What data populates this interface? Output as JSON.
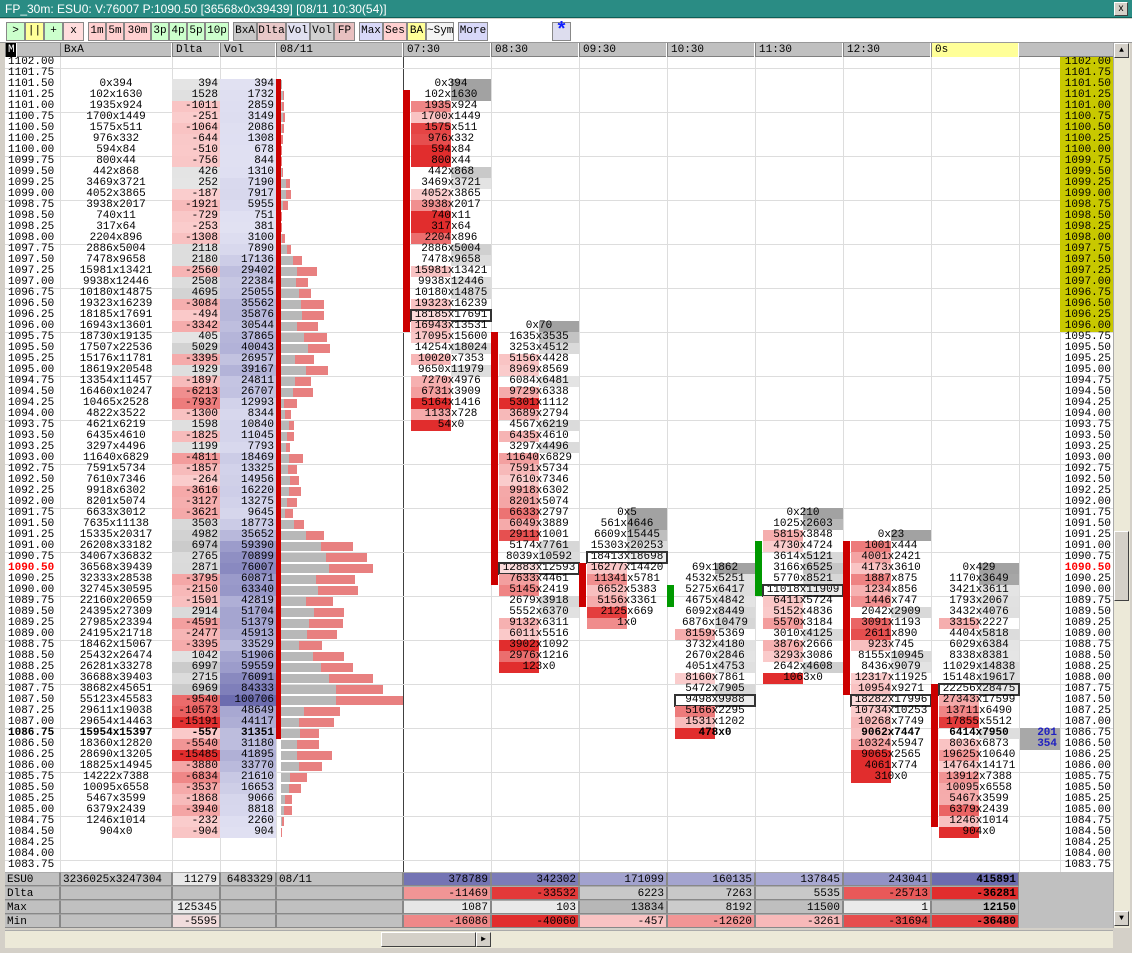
{
  "window": {
    "title": "FP_30m: ESU0: V:76007 P:1090.50 [36568x0x39439] [08/11 10:30(54)]",
    "close": "x"
  },
  "toolbar": {
    "buttons": [
      {
        "label": ">",
        "color": "#ccffcc"
      },
      {
        "label": "||",
        "color": "#ffff99"
      },
      {
        "label": "+",
        "color": "#ccffcc"
      },
      {
        "label": "x",
        "color": "#ffdddd"
      },
      {
        "label": "1m",
        "color": "#ffd0d0"
      },
      {
        "label": "5m",
        "color": "#ffd0d0"
      },
      {
        "label": "30m",
        "color": "#ffd0d0"
      },
      {
        "label": "3p",
        "color": "#ccffcc"
      },
      {
        "label": "4p",
        "color": "#ccffcc"
      },
      {
        "label": "5p",
        "color": "#ccffcc"
      },
      {
        "label": "10p",
        "color": "#ccffcc"
      },
      {
        "label": "BxA",
        "color": "#c8c8c8"
      },
      {
        "label": "Dlta",
        "color": "#e8c8c8"
      },
      {
        "label": "Vol",
        "color": "#e0e0f0"
      },
      {
        "label": "Vol",
        "color": "#d0d0d0"
      },
      {
        "label": "FP",
        "color": "#e8c0c0"
      },
      {
        "label": "Max",
        "color": "#d8d8f8"
      },
      {
        "label": "Ses",
        "color": "#ffd0d0"
      },
      {
        "label": "BA",
        "color": "#ffff99"
      },
      {
        "label": "~Sym",
        "color": "#f4f4f4"
      },
      {
        "label": "More",
        "color": "#d8d8f8"
      }
    ],
    "star_icon": "star-icon"
  },
  "header": {
    "m": "M",
    "bxa": "BxA",
    "dlta": "Dlta",
    "vol": "Vol",
    "date": "08/11",
    "periods": [
      "07:30",
      "08:30",
      "09:30",
      "10:30",
      "11:30",
      "12:30",
      "0s"
    ]
  },
  "prices": [
    "1102.00",
    "1101.75",
    "1101.50",
    "1101.25",
    "1101.00",
    "1100.75",
    "1100.50",
    "1100.25",
    "1100.00",
    "1099.75",
    "1099.50",
    "1099.25",
    "1099.00",
    "1098.75",
    "1098.50",
    "1098.25",
    "1098.00",
    "1097.75",
    "1097.50",
    "1097.25",
    "1097.00",
    "1096.75",
    "1096.50",
    "1096.25",
    "1096.00",
    "1095.75",
    "1095.50",
    "1095.25",
    "1095.00",
    "1094.75",
    "1094.50",
    "1094.25",
    "1094.00",
    "1093.75",
    "1093.50",
    "1093.25",
    "1093.00",
    "1092.75",
    "1092.50",
    "1092.25",
    "1092.00",
    "1091.75",
    "1091.50",
    "1091.25",
    "1091.00",
    "1090.75",
    "1090.50",
    "1090.25",
    "1090.00",
    "1089.75",
    "1089.50",
    "1089.25",
    "1089.00",
    "1088.75",
    "1088.50",
    "1088.25",
    "1088.00",
    "1087.75",
    "1087.50",
    "1087.25",
    "1087.00",
    "1086.75",
    "1086.50",
    "1086.25",
    "1086.00",
    "1085.75",
    "1085.50",
    "1085.25",
    "1085.00",
    "1084.75",
    "1084.50",
    "1084.25",
    "1084.00",
    "1083.75"
  ],
  "current_price": "1090.50",
  "last_price": "1086.75",
  "session_high_band": {
    "from": "1102.00",
    "to": "1096.00",
    "color": "#c8c800"
  },
  "profile": {
    "start": "1101.50",
    "rows": [
      [
        "0x394",
        394,
        394
      ],
      [
        "102x1630",
        1528,
        1732
      ],
      [
        "1935x924",
        -1011,
        2859
      ],
      [
        "1700x1449",
        -251,
        3149
      ],
      [
        "1575x511",
        -1064,
        2086
      ],
      [
        "976x332",
        -644,
        1308
      ],
      [
        "594x84",
        -510,
        678
      ],
      [
        "800x44",
        -756,
        844
      ],
      [
        "442x868",
        426,
        1310
      ],
      [
        "3469x3721",
        252,
        7190
      ],
      [
        "4052x3865",
        -187,
        7917
      ],
      [
        "3938x2017",
        -1921,
        5955
      ],
      [
        "740x11",
        -729,
        751
      ],
      [
        "317x64",
        -253,
        381
      ],
      [
        "2204x896",
        -1308,
        3100
      ],
      [
        "2886x5004",
        2118,
        7890
      ],
      [
        "7478x9658",
        2180,
        17136
      ],
      [
        "15981x13421",
        -2560,
        29402
      ],
      [
        "9938x12446",
        2508,
        22384
      ],
      [
        "10180x14875",
        4695,
        25055
      ],
      [
        "19323x16239",
        -3084,
        35562
      ],
      [
        "18185x17691",
        -494,
        35876
      ],
      [
        "16943x13601",
        -3342,
        30544
      ],
      [
        "18730x19135",
        405,
        37865
      ],
      [
        "17507x22536",
        5029,
        40043
      ],
      [
        "15176x11781",
        -3395,
        26957
      ],
      [
        "18619x20548",
        1929,
        39167
      ],
      [
        "13354x11457",
        -1897,
        24811
      ],
      [
        "16460x10247",
        -6213,
        26707
      ],
      [
        "10465x2528",
        -7937,
        12993
      ],
      [
        "4822x3522",
        -1300,
        8344
      ],
      [
        "4621x6219",
        1598,
        10840
      ],
      [
        "6435x4610",
        -1825,
        11045
      ],
      [
        "3297x4496",
        1199,
        7793
      ],
      [
        "11640x6829",
        -4811,
        18469
      ],
      [
        "7591x5734",
        -1857,
        13325
      ],
      [
        "7610x7346",
        -264,
        14956
      ],
      [
        "9918x6302",
        -3616,
        16220
      ],
      [
        "8201x5074",
        -3127,
        13275
      ],
      [
        "6633x3012",
        -3621,
        9645
      ],
      [
        "7635x11138",
        3503,
        18773
      ],
      [
        "15335x20317",
        4982,
        35652
      ],
      [
        "26208x33182",
        6974,
        59390
      ],
      [
        "34067x36832",
        2765,
        70899
      ],
      [
        "36568x39439",
        2871,
        76007
      ],
      [
        "32333x28538",
        -3795,
        60871
      ],
      [
        "32745x30595",
        -2150,
        63340
      ],
      [
        "22160x20659",
        -1501,
        42819
      ],
      [
        "24395x27309",
        2914,
        51704
      ],
      [
        "27985x23394",
        -4591,
        51379
      ],
      [
        "24195x21718",
        -2477,
        45913
      ],
      [
        "18462x15067",
        -3395,
        33529
      ],
      [
        "25432x26474",
        1042,
        51906
      ],
      [
        "26281x33278",
        6997,
        59559
      ],
      [
        "36688x39403",
        2715,
        76091
      ],
      [
        "38682x45651",
        6969,
        84333
      ],
      [
        "55123x45583",
        -9540,
        100706
      ],
      [
        "29611x19038",
        -10573,
        48649
      ],
      [
        "29654x14463",
        -15191,
        44117
      ],
      [
        "15954x15397",
        -557,
        31351
      ],
      [
        "18360x12820",
        -5540,
        31180
      ],
      [
        "28690x13205",
        -15485,
        41895
      ],
      [
        "18825x14945",
        -3880,
        33770
      ],
      [
        "14222x7388",
        -6834,
        21610
      ],
      [
        "10095x6558",
        -3537,
        16653
      ],
      [
        "5467x3599",
        -1868,
        9066
      ],
      [
        "6379x2439",
        -3940,
        8818
      ],
      [
        "1246x1014",
        -232,
        2260
      ],
      [
        "904x0",
        -904,
        904
      ]
    ],
    "range_bar": {
      "from": "1101.50",
      "to": "1086.75",
      "color": "#cc0000"
    }
  },
  "periods": [
    {
      "label": "07:30",
      "start": "1101.50",
      "poc": 21,
      "bold": -1,
      "marker": {
        "color": "#cc0000",
        "from": 1,
        "to": 22
      },
      "cells": [
        "0x394",
        "102x1630",
        "1935x924",
        "1700x1449",
        "1575x511",
        "976x332",
        "594x84",
        "800x44",
        "442x868",
        "3469x3721",
        "4052x3865",
        "3938x2017",
        "740x11",
        "317x64",
        "2204x896",
        "2886x5004",
        "7478x9658",
        "15981x13421",
        "9938x12446",
        "10180x14875",
        "19323x16239",
        "18185x17691",
        "16943x13531",
        "17095x15600",
        "14254x18024",
        "10020x7353",
        "9650x11979",
        "7270x4976",
        "6731x3909",
        "5164x1416",
        "1133x728",
        "54x0"
      ]
    },
    {
      "label": "08:30",
      "start": "1096.00",
      "poc": 22,
      "bold": -1,
      "marker": {
        "color": "#cc0000",
        "from": 1,
        "to": 23
      },
      "cells": [
        "0x70",
        "1635x3535",
        "3253x4512",
        "5156x4428",
        "8969x8569",
        "6084x6481",
        "9729x6338",
        "5301x1112",
        "3689x2794",
        "4567x6219",
        "6435x4610",
        "3297x4496",
        "11640x6829",
        "7591x5734",
        "7610x7346",
        "9918x6302",
        "8201x5074",
        "6633x2797",
        "6049x3889",
        "2911x1001",
        "5174x7761",
        "8039x10592",
        "12883x12593",
        "7633x4461",
        "5145x2419",
        "2679x3918",
        "5552x6370",
        "9132x6311",
        "6011x5516",
        "3902x1092",
        "2976x1216",
        "123x0"
      ]
    },
    {
      "label": "09:30",
      "start": "1091.75",
      "poc": 4,
      "bold": -1,
      "marker": {
        "color": "#cc0000",
        "from": 5,
        "to": 8
      },
      "cells": [
        "0x5",
        "561x4646",
        "6609x15445",
        "15303x20253",
        "18413x18698",
        "16277x14420",
        "11341x5781",
        "6652x5383",
        "5156x3361",
        "2125x669",
        "1x0"
      ]
    },
    {
      "label": "10:30",
      "start": "1090.50",
      "poc": 12,
      "bold": 15,
      "marker": {
        "color": "#009900",
        "from": 2,
        "to": 3
      },
      "cells": [
        "69x1862",
        "4532x5251",
        "5275x6417",
        "4675x4842",
        "6092x8449",
        "6876x10479",
        "8159x5369",
        "3732x4180",
        "2670x2846",
        "4051x4753",
        "8160x7861",
        "5472x7905",
        "9498x9988",
        "5166x2295",
        "1531x1202",
        "478x0"
      ]
    },
    {
      "label": "11:30",
      "start": "1091.75",
      "poc": 7,
      "bold": -1,
      "marker": {
        "color": "#009900",
        "from": 3,
        "to": 7
      },
      "cells": [
        "0x210",
        "1025x2603",
        "5815x3848",
        "4730x4724",
        "3614x5121",
        "3166x6525",
        "5770x8521",
        "11018x11909",
        "6411x5724",
        "5152x4836",
        "5570x3184",
        "3010x4125",
        "3876x2666",
        "3293x3086",
        "2642x4608",
        "1063x0"
      ]
    },
    {
      "label": "12:30",
      "start": "1091.25",
      "poc": 15,
      "bold": 18,
      "marker": {
        "color": "#cc0000",
        "from": 1,
        "to": 14
      },
      "cells": [
        "0x23",
        "1001x444",
        "4001x2421",
        "4173x3610",
        "1887x875",
        "1234x856",
        "1446x747",
        "2042x2909",
        "3091x1193",
        "2611x890",
        "923x745",
        "8155x10945",
        "8436x9079",
        "12317x11925",
        "10954x9271",
        "18282x17996",
        "10734x10253",
        "10268x7749",
        "9062x7447",
        "10324x5947",
        "9065x2565",
        "4061x774",
        "310x0"
      ]
    },
    {
      "label": "0s",
      "start": "1090.50",
      "poc": 11,
      "bold": 15,
      "marker": {
        "color": "#cc0000",
        "from": 11,
        "to": 23
      },
      "cells": [
        "0x429",
        "1170x3649",
        "3421x3611",
        "1793x2067",
        "3432x4076",
        "3315x2227",
        "4404x5818",
        "6029x6384",
        "8338x8381",
        "11029x14838",
        "15148x19617",
        "22256x28475",
        "27343x17599",
        "13711x6490",
        "17855x5512",
        "6414x7950",
        "8036x6873",
        "19625x10640",
        "14764x14171",
        "13912x7388",
        "10095x6558",
        "5467x3599",
        "6379x2439",
        "1246x1014",
        "904x0"
      ]
    }
  ],
  "dom": [
    {
      "price": "1086.75",
      "value": "201"
    },
    {
      "price": "1086.50",
      "value": "354"
    }
  ],
  "footer": {
    "rows": [
      {
        "label": "ESU0",
        "left": [
          "3236025x3247304",
          "11279",
          "6483329",
          "08/11"
        ],
        "cols": [
          "378789",
          "342302",
          "171099",
          "160135",
          "137845",
          "243041",
          "415891"
        ],
        "kind": "vol"
      },
      {
        "label": "Dlta",
        "left": [
          "",
          "",
          "",
          ""
        ],
        "cols": [
          "-11469",
          "-33532",
          "6223",
          "7263",
          "5535",
          "-25713",
          "-36281"
        ],
        "kind": "delta"
      },
      {
        "label": "Max",
        "left": [
          "",
          "125345",
          "",
          ""
        ],
        "cols": [
          "1087",
          "103",
          "13834",
          "8192",
          "11500",
          "1",
          "12150"
        ],
        "kind": "max"
      },
      {
        "label": "Min",
        "left": [
          "",
          "-5595",
          "",
          ""
        ],
        "cols": [
          "-16086",
          "-40060",
          "-457",
          "-12620",
          "-3261",
          "-31694",
          "-36480"
        ],
        "kind": "delta"
      }
    ]
  }
}
